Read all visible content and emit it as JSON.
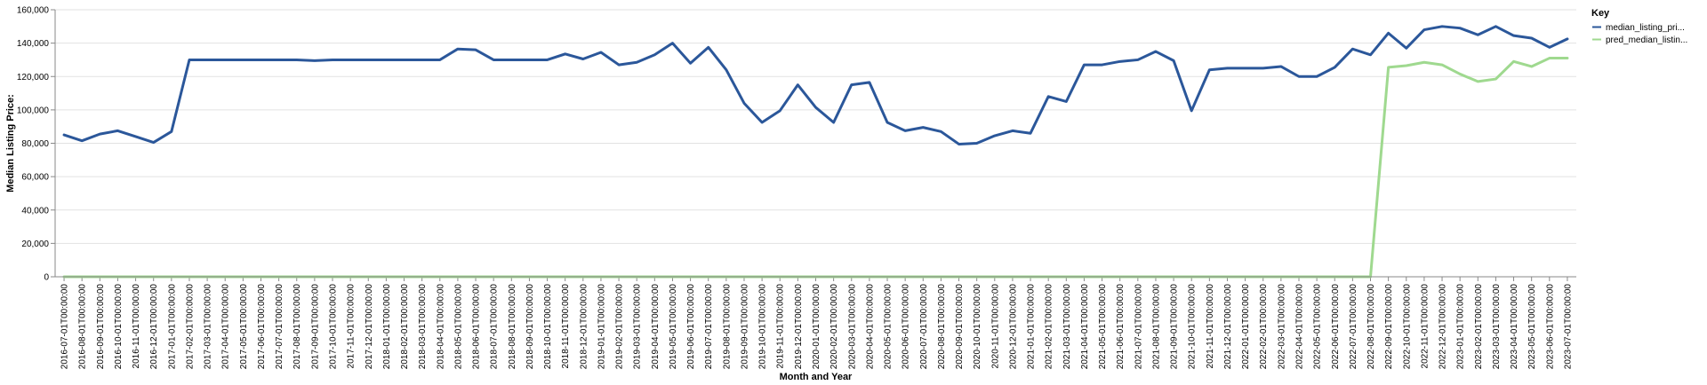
{
  "chart_data": {
    "type": "line",
    "xlabel": "Month and Year",
    "ylabel": "Median Listing Price:",
    "ylim": [
      0,
      160000
    ],
    "y_ticks": [
      "0",
      "20,000",
      "40,000",
      "60,000",
      "80,000",
      "100,000",
      "120,000",
      "140,000",
      "160,000"
    ],
    "y_tick_values": [
      0,
      20000,
      40000,
      60000,
      80000,
      100000,
      120000,
      140000,
      160000
    ],
    "grid": true,
    "legend": {
      "title": "Key",
      "position": "right"
    },
    "categories": [
      "2016-07-01T00:00:00",
      "2016-08-01T00:00:00",
      "2016-09-01T00:00:00",
      "2016-10-01T00:00:00",
      "2016-11-01T00:00:00",
      "2016-12-01T00:00:00",
      "2017-01-01T00:00:00",
      "2017-02-01T00:00:00",
      "2017-03-01T00:00:00",
      "2017-04-01T00:00:00",
      "2017-05-01T00:00:00",
      "2017-06-01T00:00:00",
      "2017-07-01T00:00:00",
      "2017-08-01T00:00:00",
      "2017-09-01T00:00:00",
      "2017-10-01T00:00:00",
      "2017-11-01T00:00:00",
      "2017-12-01T00:00:00",
      "2018-01-01T00:00:00",
      "2018-02-01T00:00:00",
      "2018-03-01T00:00:00",
      "2018-04-01T00:00:00",
      "2018-05-01T00:00:00",
      "2018-06-01T00:00:00",
      "2018-07-01T00:00:00",
      "2018-08-01T00:00:00",
      "2018-09-01T00:00:00",
      "2018-10-01T00:00:00",
      "2018-11-01T00:00:00",
      "2018-12-01T00:00:00",
      "2019-01-01T00:00:00",
      "2019-02-01T00:00:00",
      "2019-03-01T00:00:00",
      "2019-04-01T00:00:00",
      "2019-05-01T00:00:00",
      "2019-06-01T00:00:00",
      "2019-07-01T00:00:00",
      "2019-08-01T00:00:00",
      "2019-09-01T00:00:00",
      "2019-10-01T00:00:00",
      "2019-11-01T00:00:00",
      "2019-12-01T00:00:00",
      "2020-01-01T00:00:00",
      "2020-02-01T00:00:00",
      "2020-03-01T00:00:00",
      "2020-04-01T00:00:00",
      "2020-05-01T00:00:00",
      "2020-06-01T00:00:00",
      "2020-07-01T00:00:00",
      "2020-08-01T00:00:00",
      "2020-09-01T00:00:00",
      "2020-10-01T00:00:00",
      "2020-11-01T00:00:00",
      "2020-12-01T00:00:00",
      "2021-01-01T00:00:00",
      "2021-02-01T00:00:00",
      "2021-03-01T00:00:00",
      "2021-04-01T00:00:00",
      "2021-05-01T00:00:00",
      "2021-06-01T00:00:00",
      "2021-07-01T00:00:00",
      "2021-08-01T00:00:00",
      "2021-09-01T00:00:00",
      "2021-10-01T00:00:00",
      "2021-11-01T00:00:00",
      "2021-12-01T00:00:00",
      "2022-01-01T00:00:00",
      "2022-02-01T00:00:00",
      "2022-03-01T00:00:00",
      "2022-04-01T00:00:00",
      "2022-05-01T00:00:00",
      "2022-06-01T00:00:00",
      "2022-07-01T00:00:00",
      "2022-08-01T00:00:00",
      "2022-09-01T00:00:00",
      "2022-10-01T00:00:00",
      "2022-11-01T00:00:00",
      "2022-12-01T00:00:00",
      "2023-01-01T00:00:00",
      "2023-02-01T00:00:00",
      "2023-03-01T00:00:00",
      "2023-04-01T00:00:00",
      "2023-05-01T00:00:00",
      "2023-06-01T00:00:00",
      "2023-07-01T00:00:00"
    ],
    "series": [
      {
        "name": "median_listing_pri...",
        "color": "#2b579a",
        "values": [
          85000,
          81500,
          85500,
          87500,
          84000,
          80500,
          87000,
          130000,
          130000,
          130000,
          130000,
          130000,
          130000,
          130000,
          129500,
          130000,
          130000,
          130000,
          130000,
          130000,
          130000,
          130000,
          136500,
          136000,
          130000,
          130000,
          130000,
          130000,
          133500,
          130500,
          134500,
          127000,
          128500,
          133000,
          140000,
          128000,
          137500,
          124000,
          104000,
          92500,
          99500,
          115000,
          101500,
          92500,
          115000,
          116500,
          92500,
          87500,
          89500,
          87000,
          79500,
          80000,
          84500,
          87500,
          86000,
          108000,
          105000,
          127000,
          127000,
          129000,
          130000,
          135000,
          129500,
          99500,
          124000,
          125000,
          125000,
          125000,
          126000,
          120000,
          120000,
          125500,
          136500,
          133000,
          146000,
          137000,
          148000,
          150000,
          149000,
          145000,
          150000,
          144500,
          143000,
          137500,
          142500
        ]
      },
      {
        "name": "pred_median_listin...",
        "color": "#9fd98f",
        "values": [
          0,
          0,
          0,
          0,
          0,
          0,
          0,
          0,
          0,
          0,
          0,
          0,
          0,
          0,
          0,
          0,
          0,
          0,
          0,
          0,
          0,
          0,
          0,
          0,
          0,
          0,
          0,
          0,
          0,
          0,
          0,
          0,
          0,
          0,
          0,
          0,
          0,
          0,
          0,
          0,
          0,
          0,
          0,
          0,
          0,
          0,
          0,
          0,
          0,
          0,
          0,
          0,
          0,
          0,
          0,
          0,
          0,
          0,
          0,
          0,
          0,
          0,
          0,
          0,
          0,
          0,
          0,
          0,
          0,
          0,
          0,
          0,
          0,
          0,
          125500,
          126500,
          128500,
          127000,
          121500,
          117000,
          118500,
          129000,
          126000,
          131000,
          131000
        ]
      }
    ]
  }
}
